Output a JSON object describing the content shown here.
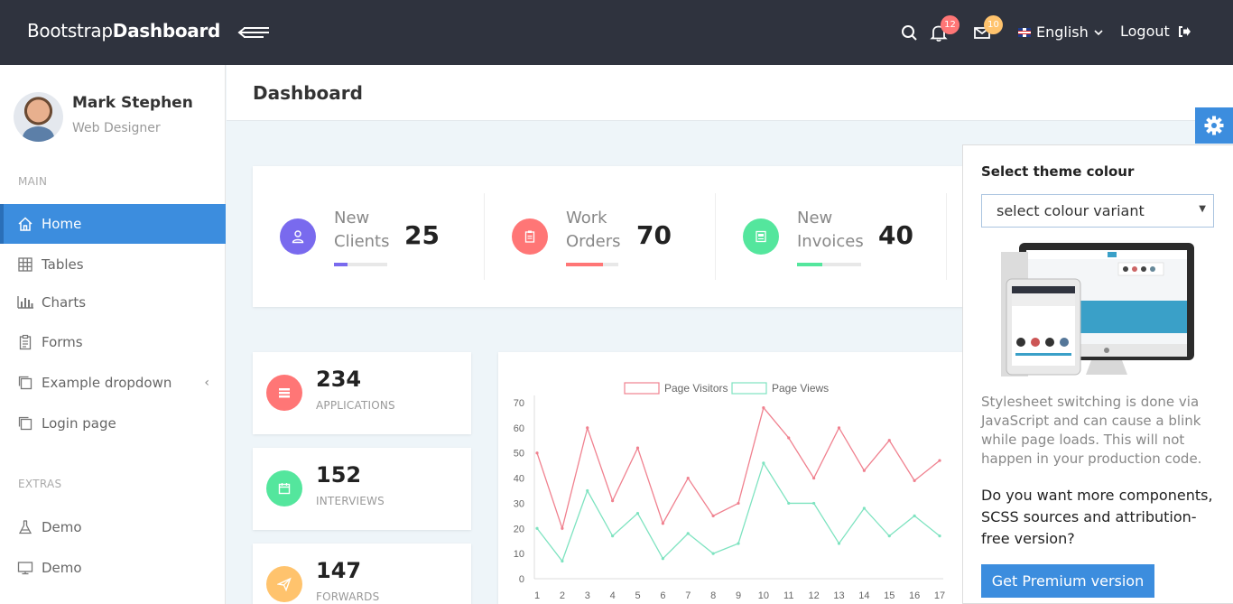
{
  "navbar": {
    "brand_light": "Bootstrap",
    "brand_bold": "Dashboard",
    "notifications_count": "12",
    "messages_count": "10",
    "language": "English",
    "logout_label": "Logout"
  },
  "sidebar": {
    "user_name": "Mark Stephen",
    "user_role": "Web Designer",
    "main_heading": "MAIN",
    "main_items": [
      {
        "label": "Home",
        "icon": "home-icon"
      },
      {
        "label": "Tables",
        "icon": "grid-icon"
      },
      {
        "label": "Charts",
        "icon": "bar-chart-icon"
      },
      {
        "label": "Forms",
        "icon": "clipboard-icon"
      },
      {
        "label": "Example dropdown",
        "icon": "windows-icon"
      },
      {
        "label": "Login page",
        "icon": "windows-icon"
      }
    ],
    "extras_heading": "EXTRAS",
    "extras_items": [
      {
        "label": "Demo",
        "icon": "flask-icon"
      },
      {
        "label": "Demo",
        "icon": "monitor-icon"
      }
    ]
  },
  "header": {
    "title": "Dashboard"
  },
  "stats": [
    {
      "label": "New Clients",
      "value": "25",
      "color": "#796aee",
      "progress": 0.25
    },
    {
      "label": "Work Orders",
      "value": "70",
      "color": "#ff7676",
      "progress": 0.7
    },
    {
      "label": "New Invoices",
      "value": "40",
      "color": "#54e69d",
      "progress": 0.4
    }
  ],
  "cards": [
    {
      "value": "234",
      "label": "APPLICATIONS",
      "color": "#ff7676"
    },
    {
      "value": "152",
      "label": "INTERVIEWS",
      "color": "#54e69d"
    },
    {
      "value": "147",
      "label": "FORWARDS",
      "color": "#ffc36d"
    }
  ],
  "chart_data": {
    "type": "line",
    "x": [
      1,
      2,
      3,
      4,
      5,
      6,
      7,
      8,
      9,
      10,
      11,
      12,
      13,
      14,
      15,
      16,
      17
    ],
    "series": [
      {
        "name": "Page Visitors",
        "color": "#f0818f",
        "values": [
          50,
          20,
          60,
          31,
          52,
          22,
          40,
          25,
          30,
          68,
          56,
          40,
          60,
          43,
          55,
          39,
          47
        ]
      },
      {
        "name": "Page Views",
        "color": "#7ee3c0",
        "values": [
          20,
          7,
          35,
          17,
          26,
          8,
          18,
          10,
          14,
          46,
          30,
          30,
          14,
          28,
          17,
          25,
          17
        ]
      }
    ],
    "yticks": [
      0,
      10,
      20,
      30,
      40,
      50,
      60,
      70
    ],
    "ylim": [
      0,
      70
    ],
    "legend": "top-center",
    "grid": false
  },
  "settings_panel": {
    "title": "Select theme colour",
    "select_value": "select colour variant",
    "note": "Stylesheet switching is done via JavaScript and can cause a blink while page loads. This will not happen in your production code.",
    "cta_text": "Do you want more components, SCSS sources and attribution-free version?",
    "button_label": "Get Premium version",
    "accent": "#3c8dde"
  }
}
